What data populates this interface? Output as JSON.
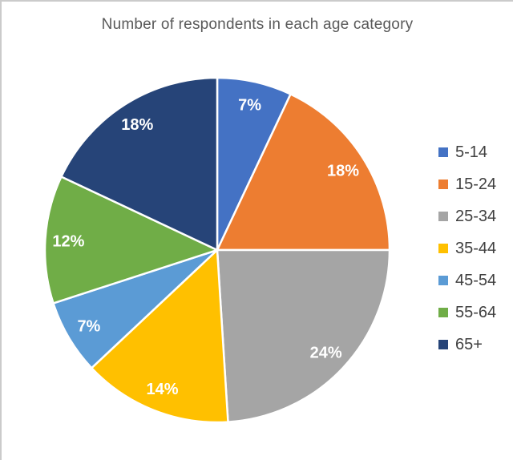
{
  "chart_data": {
    "type": "pie",
    "title": "Number of respondents in each age category",
    "categories": [
      "5-14",
      "15-24",
      "25-34",
      "35-44",
      "45-54",
      "55-64",
      "65+"
    ],
    "values": [
      7,
      18,
      24,
      14,
      7,
      12,
      18
    ],
    "data_labels": [
      "7%",
      "18%",
      "24%",
      "14%",
      "7%",
      "12%",
      "18%"
    ],
    "colors": [
      "#4472C4",
      "#ED7D31",
      "#A5A5A5",
      "#FFC000",
      "#5B9BD5",
      "#70AD47",
      "#264478"
    ],
    "start_angle_deg": 0,
    "direction": "clockwise",
    "legend_position": "right",
    "label_color": "#FFFFFF",
    "title_color": "#595959",
    "legend_text_color": "#404040",
    "background_color": "#FFFFFF",
    "separator_color": "#FFFFFF"
  }
}
